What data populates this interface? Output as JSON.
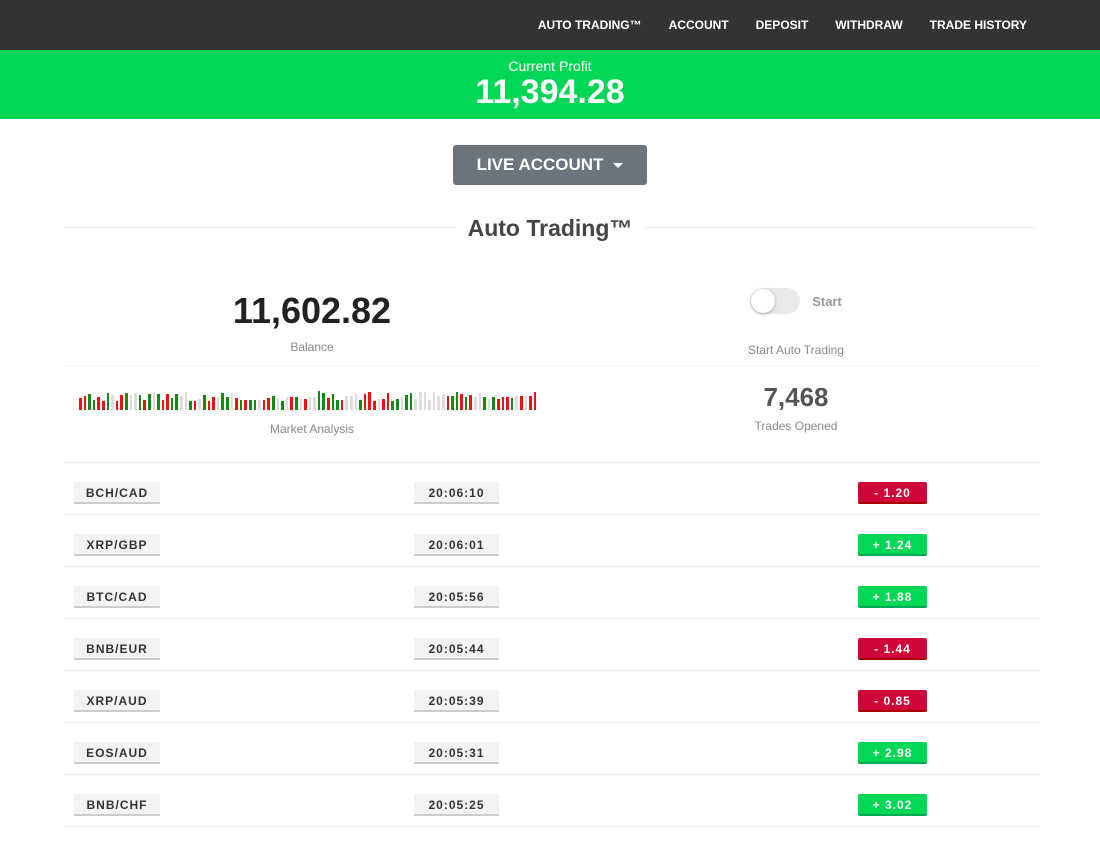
{
  "nav": [
    "AUTO TRADING™",
    "ACCOUNT",
    "DEPOSIT",
    "WITHDRAW",
    "TRADE HISTORY"
  ],
  "profit": {
    "label": "Current Profit",
    "value": "11,394.28"
  },
  "account_button": "LIVE ACCOUNT",
  "section_title": "Auto Trading™",
  "balance": {
    "value": "11,602.82",
    "label": "Balance"
  },
  "auto": {
    "toggle_label": "Start",
    "label": "Start Auto Trading",
    "enabled": false
  },
  "market": {
    "label": "Market Analysis",
    "colors": {
      "up": "#148a14",
      "down": "#ee1111",
      "neutral": "#dddddd"
    }
  },
  "trades": {
    "value": "7,468",
    "label": "Trades Opened"
  },
  "rows": [
    {
      "pair": "BCH/CAD",
      "time": "20:06:10",
      "change": "- 1.20",
      "dir": "neg"
    },
    {
      "pair": "XRP/GBP",
      "time": "20:06:01",
      "change": "+ 1.24",
      "dir": "pos"
    },
    {
      "pair": "BTC/CAD",
      "time": "20:05:56",
      "change": "+ 1.88",
      "dir": "pos"
    },
    {
      "pair": "BNB/EUR",
      "time": "20:05:44",
      "change": "- 1.44",
      "dir": "neg"
    },
    {
      "pair": "XRP/AUD",
      "time": "20:05:39",
      "change": "- 0.85",
      "dir": "neg"
    },
    {
      "pair": "EOS/AUD",
      "time": "20:05:31",
      "change": "+ 2.98",
      "dir": "pos"
    },
    {
      "pair": "BNB/CHF",
      "time": "20:05:25",
      "change": "+ 3.02",
      "dir": "pos"
    }
  ]
}
